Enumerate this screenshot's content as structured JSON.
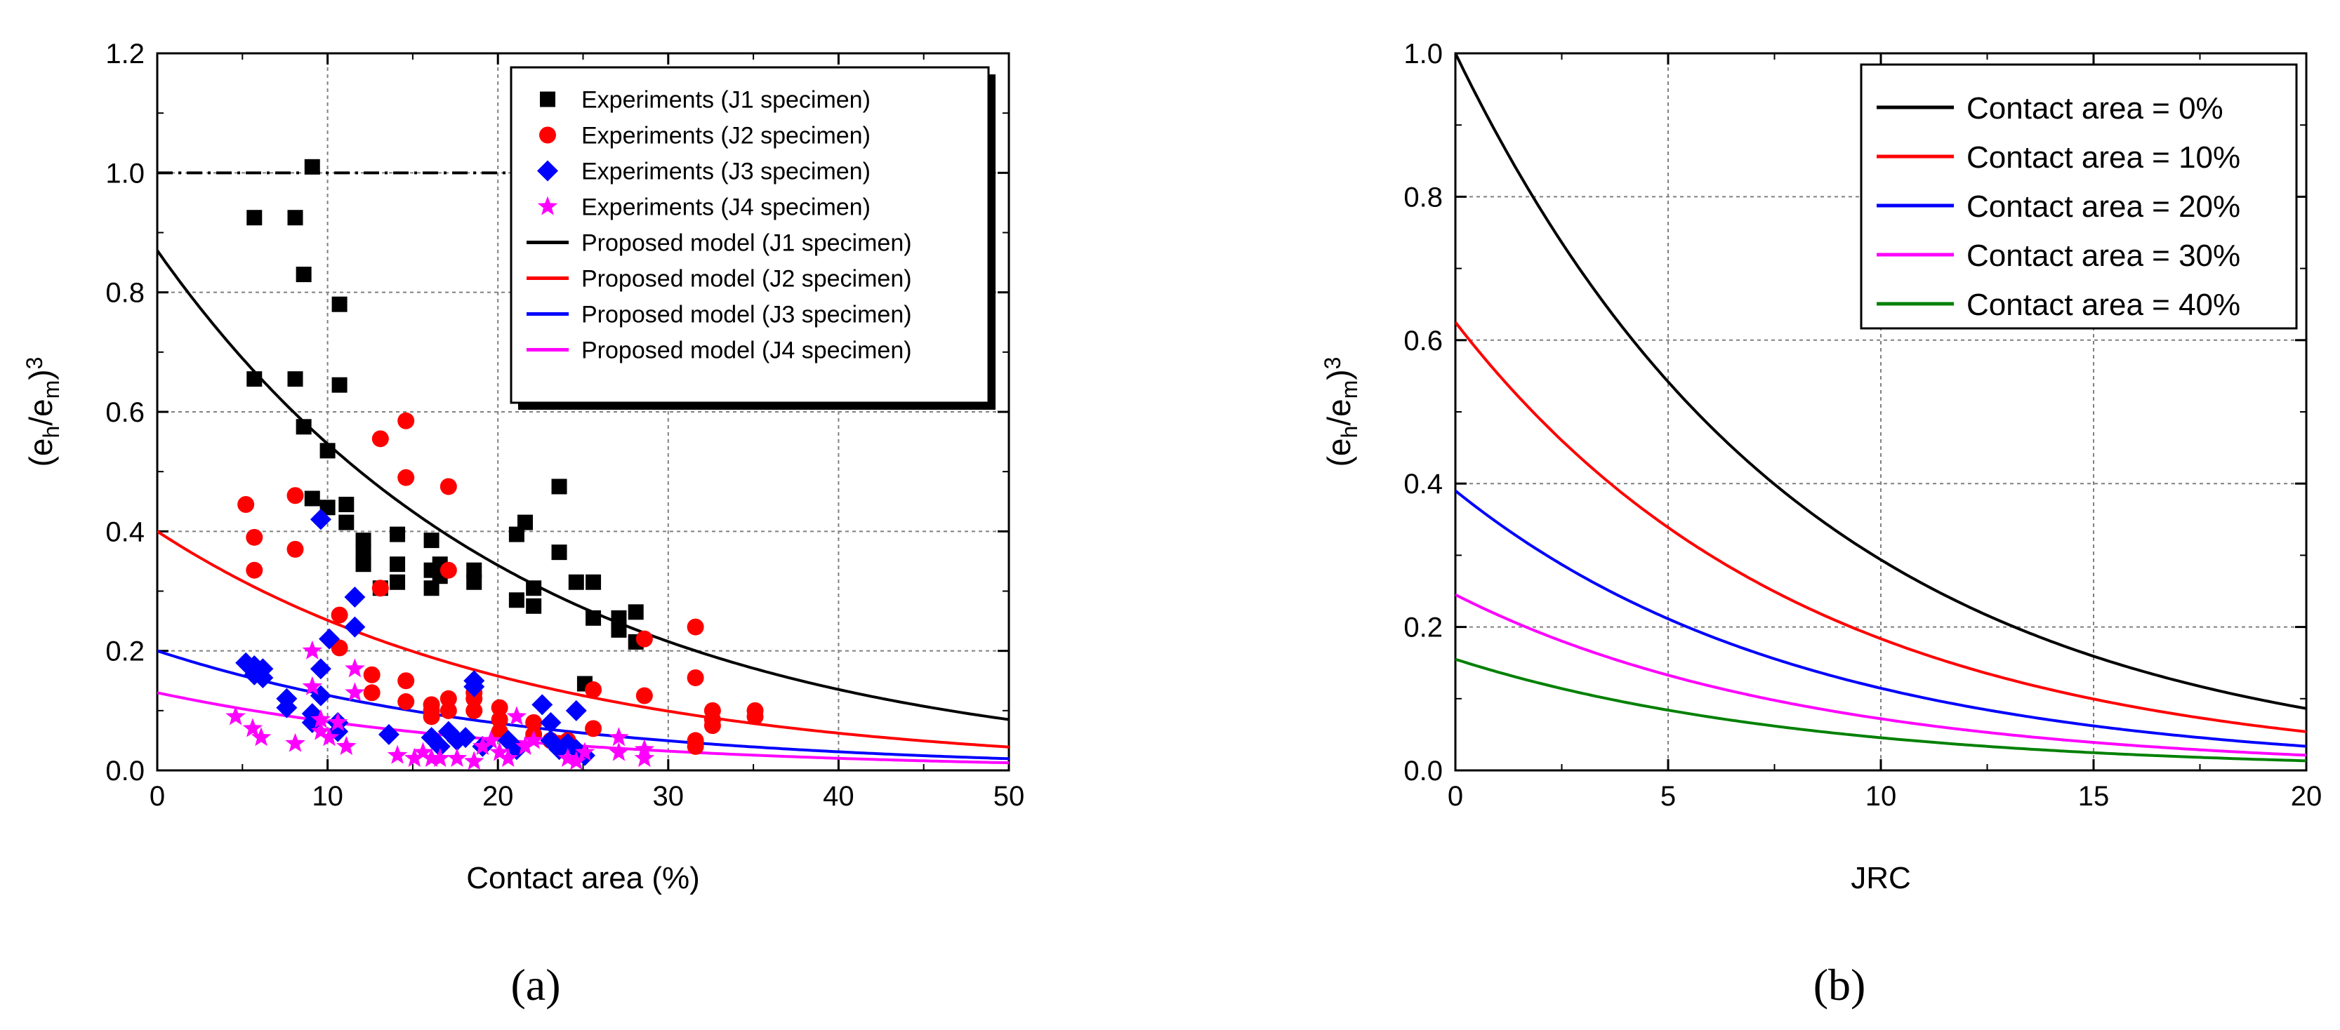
{
  "chart_data": [
    {
      "panel": "(a)",
      "type": "scatter",
      "xlabel": "Contact area (%)",
      "ylabel": {
        "base": "(e",
        "sub1": "h",
        "mid": "/e",
        "sub2": "m",
        "close": ")",
        "sup": "3"
      },
      "xlim": [
        0,
        50
      ],
      "ylim": [
        0,
        1.2
      ],
      "xticks": [
        0,
        10,
        20,
        30,
        40,
        50
      ],
      "yticks": [
        0.0,
        0.2,
        0.4,
        0.6,
        0.8,
        1.0,
        1.2
      ],
      "grid": true,
      "reference_line": {
        "y": 1.0,
        "x_range": [
          0,
          22
        ],
        "style": "dash-dot"
      },
      "legend_position": "top-right",
      "series": [
        {
          "name": "Experiments (J1 specimen)",
          "kind": "scatter",
          "marker": "square",
          "color": "#000000",
          "points": [
            [
              5.7,
              0.925
            ],
            [
              8.1,
              0.925
            ],
            [
              9.1,
              1.01
            ],
            [
              8.6,
              0.83
            ],
            [
              10.7,
              0.78
            ],
            [
              5.7,
              0.655
            ],
            [
              8.1,
              0.655
            ],
            [
              10.7,
              0.645
            ],
            [
              8.6,
              0.575
            ],
            [
              9.1,
              0.455
            ],
            [
              10.0,
              0.535
            ],
            [
              10.0,
              0.44
            ],
            [
              11.1,
              0.445
            ],
            [
              11.1,
              0.415
            ],
            [
              12.1,
              0.385
            ],
            [
              12.1,
              0.365
            ],
            [
              12.1,
              0.345
            ],
            [
              13.1,
              0.305
            ],
            [
              14.1,
              0.395
            ],
            [
              14.1,
              0.345
            ],
            [
              14.1,
              0.315
            ],
            [
              16.1,
              0.385
            ],
            [
              16.1,
              0.335
            ],
            [
              16.1,
              0.305
            ],
            [
              16.6,
              0.345
            ],
            [
              16.6,
              0.325
            ],
            [
              18.6,
              0.335
            ],
            [
              18.6,
              0.315
            ],
            [
              21.1,
              0.395
            ],
            [
              21.6,
              0.415
            ],
            [
              21.1,
              0.285
            ],
            [
              22.1,
              0.305
            ],
            [
              22.1,
              0.275
            ],
            [
              23.6,
              0.475
            ],
            [
              23.6,
              0.365
            ],
            [
              24.6,
              0.315
            ],
            [
              25.6,
              0.315
            ],
            [
              25.6,
              0.255
            ],
            [
              25.1,
              0.145
            ],
            [
              27.1,
              0.255
            ],
            [
              27.1,
              0.235
            ],
            [
              28.1,
              0.265
            ],
            [
              28.1,
              0.215
            ]
          ]
        },
        {
          "name": "Experiments (J2 specimen)",
          "kind": "scatter",
          "marker": "circle",
          "color": "#ff0000",
          "points": [
            [
              5.2,
              0.445
            ],
            [
              5.7,
              0.39
            ],
            [
              5.7,
              0.335
            ],
            [
              8.1,
              0.46
            ],
            [
              8.1,
              0.37
            ],
            [
              10.7,
              0.26
            ],
            [
              10.7,
              0.205
            ],
            [
              12.6,
              0.16
            ],
            [
              12.6,
              0.13
            ],
            [
              13.1,
              0.555
            ],
            [
              13.1,
              0.305
            ],
            [
              14.6,
              0.585
            ],
            [
              14.6,
              0.49
            ],
            [
              14.6,
              0.15
            ],
            [
              14.6,
              0.115
            ],
            [
              16.1,
              0.11
            ],
            [
              16.1,
              0.1
            ],
            [
              16.1,
              0.09
            ],
            [
              17.1,
              0.475
            ],
            [
              17.1,
              0.335
            ],
            [
              17.1,
              0.12
            ],
            [
              17.1,
              0.1
            ],
            [
              18.6,
              0.13
            ],
            [
              18.6,
              0.12
            ],
            [
              18.6,
              0.1
            ],
            [
              20.1,
              0.105
            ],
            [
              20.1,
              0.085
            ],
            [
              20.1,
              0.065
            ],
            [
              22.1,
              0.08
            ],
            [
              22.1,
              0.06
            ],
            [
              23.1,
              0.05
            ],
            [
              23.6,
              0.045
            ],
            [
              24.1,
              0.05
            ],
            [
              25.6,
              0.135
            ],
            [
              25.6,
              0.07
            ],
            [
              28.6,
              0.22
            ],
            [
              28.6,
              0.125
            ],
            [
              31.6,
              0.24
            ],
            [
              31.6,
              0.155
            ],
            [
              31.6,
              0.05
            ],
            [
              31.6,
              0.04
            ],
            [
              32.6,
              0.1
            ],
            [
              32.6,
              0.085
            ],
            [
              32.6,
              0.075
            ],
            [
              35.1,
              0.1
            ],
            [
              35.1,
              0.09
            ]
          ]
        },
        {
          "name": "Experiments (J3 specimen)",
          "kind": "scatter",
          "marker": "diamond",
          "color": "#0000ff",
          "points": [
            [
              5.2,
              0.18
            ],
            [
              5.7,
              0.175
            ],
            [
              5.7,
              0.16
            ],
            [
              6.2,
              0.17
            ],
            [
              6.2,
              0.155
            ],
            [
              7.6,
              0.12
            ],
            [
              7.6,
              0.105
            ],
            [
              9.1,
              0.095
            ],
            [
              9.1,
              0.08
            ],
            [
              9.6,
              0.17
            ],
            [
              9.6,
              0.125
            ],
            [
              9.6,
              0.42
            ],
            [
              10.1,
              0.22
            ],
            [
              10.6,
              0.08
            ],
            [
              10.6,
              0.065
            ],
            [
              11.6,
              0.29
            ],
            [
              11.6,
              0.24
            ],
            [
              13.6,
              0.06
            ],
            [
              16.1,
              0.055
            ],
            [
              16.6,
              0.04
            ],
            [
              17.1,
              0.065
            ],
            [
              17.6,
              0.05
            ],
            [
              18.1,
              0.055
            ],
            [
              18.6,
              0.14
            ],
            [
              18.6,
              0.15
            ],
            [
              19.1,
              0.04
            ],
            [
              20.6,
              0.05
            ],
            [
              21.1,
              0.035
            ],
            [
              22.6,
              0.11
            ],
            [
              23.1,
              0.08
            ],
            [
              23.1,
              0.05
            ],
            [
              23.6,
              0.035
            ],
            [
              24.1,
              0.045
            ],
            [
              24.6,
              0.1
            ],
            [
              24.6,
              0.035
            ],
            [
              25.1,
              0.025
            ]
          ]
        },
        {
          "name": "Experiments (J4 specimen)",
          "kind": "scatter",
          "marker": "star",
          "color": "#ff00ff",
          "points": [
            [
              4.6,
              0.09
            ],
            [
              5.6,
              0.07
            ],
            [
              6.1,
              0.055
            ],
            [
              8.1,
              0.045
            ],
            [
              9.1,
              0.2
            ],
            [
              9.1,
              0.14
            ],
            [
              9.6,
              0.085
            ],
            [
              9.6,
              0.065
            ],
            [
              10.1,
              0.055
            ],
            [
              10.6,
              0.08
            ],
            [
              11.1,
              0.04
            ],
            [
              11.6,
              0.17
            ],
            [
              11.6,
              0.13
            ],
            [
              14.1,
              0.025
            ],
            [
              15.1,
              0.02
            ],
            [
              15.6,
              0.03
            ],
            [
              16.1,
              0.02
            ],
            [
              16.6,
              0.02
            ],
            [
              17.6,
              0.02
            ],
            [
              18.6,
              0.015
            ],
            [
              19.1,
              0.04
            ],
            [
              19.6,
              0.05
            ],
            [
              20.1,
              0.03
            ],
            [
              20.6,
              0.02
            ],
            [
              21.1,
              0.09
            ],
            [
              21.6,
              0.04
            ],
            [
              22.1,
              0.05
            ],
            [
              24.1,
              0.02
            ],
            [
              24.6,
              0.015
            ],
            [
              25.1,
              0.03
            ],
            [
              27.1,
              0.055
            ],
            [
              27.1,
              0.03
            ],
            [
              28.6,
              0.035
            ],
            [
              28.6,
              0.02
            ]
          ]
        },
        {
          "name": "Proposed model (J1 specimen)",
          "kind": "line",
          "color": "#000000",
          "model": {
            "a": 0.87,
            "b": 0.0465
          }
        },
        {
          "name": "Proposed model (J2 specimen)",
          "kind": "line",
          "color": "#ff0000",
          "model": {
            "a": 0.4,
            "b": 0.0465
          }
        },
        {
          "name": "Proposed model (J3 specimen)",
          "kind": "line",
          "color": "#0000ff",
          "model": {
            "a": 0.2,
            "b": 0.0465
          }
        },
        {
          "name": "Proposed model (J4 specimen)",
          "kind": "line",
          "color": "#ff00ff",
          "model": {
            "a": 0.13,
            "b": 0.0465
          }
        }
      ]
    },
    {
      "panel": "(b)",
      "type": "line",
      "xlabel": "JRC",
      "ylabel": {
        "base": "(e",
        "sub1": "h",
        "mid": "/e",
        "sub2": "m",
        "close": ")",
        "sup": "3"
      },
      "xlim": [
        0,
        20
      ],
      "ylim": [
        0,
        1.0
      ],
      "xticks": [
        0,
        5,
        10,
        15,
        20
      ],
      "yticks": [
        0.0,
        0.2,
        0.4,
        0.6,
        0.8,
        1.0
      ],
      "grid": true,
      "legend_position": "top-right",
      "series": [
        {
          "name": "Contact area = 0%",
          "kind": "line",
          "color": "#000000",
          "model": {
            "a": 1.0,
            "b": 0.1225
          }
        },
        {
          "name": "Contact area = 10%",
          "kind": "line",
          "color": "#ff0000",
          "model": {
            "a": 0.625,
            "b": 0.1225
          }
        },
        {
          "name": "Contact area = 20%",
          "kind": "line",
          "color": "#0000ff",
          "model": {
            "a": 0.39,
            "b": 0.1225
          }
        },
        {
          "name": "Contact area = 30%",
          "kind": "line",
          "color": "#ff00ff",
          "model": {
            "a": 0.245,
            "b": 0.1225
          }
        },
        {
          "name": "Contact area = 40%",
          "kind": "line",
          "color": "#008000",
          "model": {
            "a": 0.155,
            "b": 0.1225
          }
        }
      ]
    }
  ]
}
